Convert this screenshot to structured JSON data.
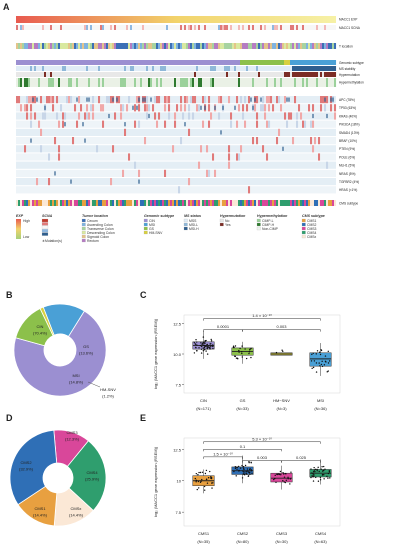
{
  "panels": {
    "A": {
      "letter": "A",
      "track_labels": {
        "exp": "MACC1 EXP",
        "scna": "MACC1 SCNA",
        "location": "T location",
        "genomic": "Genomic subtype",
        "msi": "MS stability",
        "hypermut": "Hypermutation",
        "hypermeth": "Hypermethylation",
        "cms": "CMS subtype"
      },
      "genes": [
        {
          "name": "APC",
          "pct": "(78%)"
        },
        {
          "name": "TP53",
          "pct": "(63%)"
        },
        {
          "name": "KRAS",
          "pct": "(40%)"
        },
        {
          "name": "PIK3CA",
          "pct": "(18%)"
        },
        {
          "name": "SMAD4",
          "pct": "(13%)"
        },
        {
          "name": "BRAF",
          "pct": "(10%)"
        },
        {
          "name": "PTEN",
          "pct": "(9%)"
        },
        {
          "name": "POLE",
          "pct": "(6%)"
        },
        {
          "name": "MLH1",
          "pct": "(5%)"
        },
        {
          "name": "NRAS",
          "pct": "(5%)"
        },
        {
          "name": "TGFBR2",
          "pct": "(4%)"
        },
        {
          "name": "HRAS",
          "pct": "(<1%)"
        }
      ],
      "legend": {
        "exp": {
          "title": "EXP",
          "high": "High",
          "low": "Low",
          "mutation": "Mutation(s)"
        },
        "scna": {
          "title": "SCNA"
        },
        "tumor_location": {
          "title": "Tumor location",
          "items": [
            {
              "label": "Cecum",
              "color": "#3b6fb6"
            },
            {
              "label": "Ascending Colon",
              "color": "#7fb3e0"
            },
            {
              "label": "Transverse Colon",
              "color": "#a7d3a0"
            },
            {
              "label": "Descending Colon",
              "color": "#d9e9a0"
            },
            {
              "label": "Sigmoid Colon",
              "color": "#e4c48a"
            },
            {
              "label": "Rectum",
              "color": "#b57cc2"
            }
          ]
        },
        "genomic_subtype": {
          "title": "Genomic subtype",
          "items": [
            {
              "label": "CIN",
              "color": "#9b8fd1"
            },
            {
              "label": "MSI",
              "color": "#4aa0d6"
            },
            {
              "label": "GS",
              "color": "#8cc04b"
            },
            {
              "label": "HM-SNV",
              "color": "#d8d040"
            }
          ]
        },
        "ms_status": {
          "title": "MS status",
          "items": [
            {
              "label": "MSS",
              "color": "#e0ecf6"
            },
            {
              "label": "MSI-L",
              "color": "#8fb8d8"
            },
            {
              "label": "MSI-H",
              "color": "#2f5e8e"
            }
          ]
        },
        "hypermutation": {
          "title": "Hypermutation",
          "items": [
            {
              "label": "No",
              "color": "#e8e8e8"
            },
            {
              "label": "Yes",
              "color": "#7b2d26"
            }
          ]
        },
        "hypermethylation": {
          "title": "Hypermethylation",
          "items": [
            {
              "label": "CIMP-L",
              "color": "#9bd19b"
            },
            {
              "label": "CIMP-H",
              "color": "#2f7a2f"
            },
            {
              "label": "Non-CIMP",
              "color": "#eef5ee"
            }
          ]
        },
        "cms_subtype": {
          "title": "CMS subtype",
          "items": [
            {
              "label": "CMS1",
              "color": "#e8a040"
            },
            {
              "label": "CMS2",
              "color": "#2f6fb6"
            },
            {
              "label": "CMS3",
              "color": "#d9479a"
            },
            {
              "label": "CMS4",
              "color": "#2f9e6e"
            },
            {
              "label": "CMSx",
              "color": "#fbe8d6"
            }
          ]
        }
      }
    },
    "B": {
      "letter": "B",
      "labels": [
        {
          "name": "CIN",
          "pct": "(70.4%)"
        },
        {
          "name": "GS",
          "pct": "(13.6%)"
        },
        {
          "name": "MSI",
          "pct": "(14.8%)"
        },
        {
          "name": "HM-SNV",
          "pct": "(1.2%)"
        }
      ]
    },
    "C": {
      "letter": "C"
    },
    "D": {
      "letter": "D",
      "labels": [
        {
          "name": "CMS3",
          "pct": "(12.3%)"
        },
        {
          "name": "CMS4",
          "pct": "(25.9%)"
        },
        {
          "name": "CMSx",
          "pct": "(14.4%)"
        },
        {
          "name": "CMS1",
          "pct": "(14.4%)"
        },
        {
          "name": "CMS2",
          "pct": "(32.9%)"
        }
      ]
    },
    "E": {
      "letter": "E"
    }
  },
  "chart_data": [
    {
      "type": "pie",
      "panel": "B",
      "categories": [
        "CIN",
        "GS",
        "HM-SNV",
        "MSI"
      ],
      "values": [
        70.4,
        13.6,
        1.2,
        14.8
      ],
      "colors": [
        "#9b8fd1",
        "#8cc04b",
        "#d8d040",
        "#4aa0d6"
      ],
      "donut": true
    },
    {
      "type": "box",
      "panel": "C",
      "ylabel": "log₂ (MACC1 gene expression (RSEM))",
      "ylim": [
        6.8,
        13.2
      ],
      "yticks": [
        7.5,
        10.0,
        12.5
      ],
      "ytick_labels": [
        "7.5",
        "10.0",
        "12.5"
      ],
      "groups": [
        {
          "name": "CIN",
          "n": "(N=171)",
          "color": "#9b8fd1",
          "q1": 10.4,
          "median": 10.7,
          "q3": 11.0,
          "wlow": 9.6,
          "whigh": 11.9,
          "npts": 60
        },
        {
          "name": "GS",
          "n": "(N=33)",
          "color": "#8cc04b",
          "q1": 9.9,
          "median": 10.2,
          "q3": 10.5,
          "wlow": 9.2,
          "whigh": 11.0,
          "npts": 25
        },
        {
          "name": "HM−SNV",
          "n": "(N=3)",
          "color": "#d8d040",
          "q1": 9.9,
          "median": 10.0,
          "q3": 10.1,
          "wlow": 9.9,
          "whigh": 10.1,
          "npts": 3
        },
        {
          "name": "MSI",
          "n": "(N=36)",
          "color": "#4aa0d6",
          "q1": 9.0,
          "median": 9.6,
          "q3": 10.1,
          "wlow": 8.2,
          "whigh": 10.9,
          "npts": 28
        }
      ],
      "annotations": [
        {
          "from": 0,
          "to": 3,
          "level": 12.9,
          "text": "1.4 × 10⁻¹⁰"
        },
        {
          "from": 0,
          "to": 1,
          "level": 12.0,
          "text": "0.0001"
        },
        {
          "from": 1,
          "to": 3,
          "level": 12.0,
          "text": "0.003"
        }
      ]
    },
    {
      "type": "pie",
      "panel": "D",
      "categories": [
        "CMS3",
        "CMS4",
        "CMSx",
        "CMS1",
        "CMS2"
      ],
      "values": [
        12.3,
        25.9,
        14.4,
        14.4,
        32.9
      ],
      "colors": [
        "#d9479a",
        "#2f9e6e",
        "#fbe8d6",
        "#e8a040",
        "#2f6fb6"
      ],
      "donut": true
    },
    {
      "type": "box",
      "panel": "E",
      "ylabel": "log₂ (MACC1 gene expression (RSEM))",
      "ylim": [
        6.4,
        13.4
      ],
      "yticks": [
        7.5,
        10.0,
        12.5
      ],
      "ytick_labels": [
        "7.5",
        "10",
        "12.5"
      ],
      "groups": [
        {
          "name": "CMS1",
          "n": "(N=35)",
          "color": "#e8a040",
          "q1": 9.6,
          "median": 10.0,
          "q3": 10.4,
          "wlow": 9.0,
          "whigh": 10.9,
          "npts": 30
        },
        {
          "name": "CMS2",
          "n": "(N=80)",
          "color": "#2f6fb6",
          "q1": 10.5,
          "median": 10.8,
          "q3": 11.1,
          "wlow": 9.8,
          "whigh": 12.0,
          "npts": 45
        },
        {
          "name": "CMS3",
          "n": "(N=30)",
          "color": "#d9479a",
          "q1": 9.9,
          "median": 10.2,
          "q3": 10.6,
          "wlow": 9.3,
          "whigh": 11.2,
          "npts": 25
        },
        {
          "name": "CMS4",
          "n": "(N=63)",
          "color": "#2f9e6e",
          "q1": 10.3,
          "median": 10.6,
          "q3": 10.9,
          "wlow": 9.7,
          "whigh": 11.7,
          "npts": 40
        }
      ],
      "annotations": [
        {
          "from": 0,
          "to": 3,
          "level": 13.1,
          "text": "5.3 × 10⁻¹⁰"
        },
        {
          "from": 0,
          "to": 2,
          "level": 12.5,
          "text": "0.1"
        },
        {
          "from": 0,
          "to": 1,
          "level": 11.9,
          "text": "1.5 × 10⁻¹⁰"
        },
        {
          "from": 1,
          "to": 2,
          "level": 11.6,
          "text": "0.003"
        },
        {
          "from": 2,
          "to": 3,
          "level": 11.6,
          "text": "0.025"
        }
      ]
    }
  ]
}
